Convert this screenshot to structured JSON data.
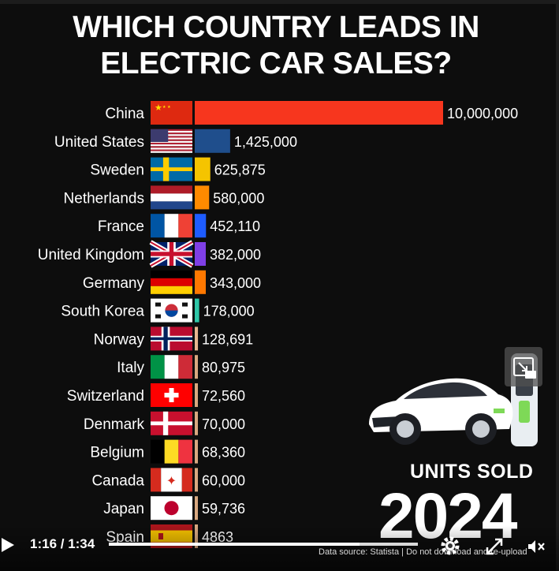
{
  "title_lines": [
    "WHICH COUNTRY LEADS IN",
    "ELECTRIC CAR SALES?"
  ],
  "chart_data": {
    "type": "bar",
    "orientation": "horizontal",
    "title": "WHICH COUNTRY LEADS IN ELECTRIC CAR SALES?",
    "categories": [
      "China",
      "United States",
      "Sweden",
      "Netherlands",
      "France",
      "United Kingdom",
      "Germany",
      "South Korea",
      "Norway",
      "Italy",
      "Switzerland",
      "Denmark",
      "Belgium",
      "Canada",
      "Japan",
      "Spain"
    ],
    "values": [
      10000000,
      1425000,
      625875,
      580000,
      452110,
      382000,
      343000,
      178000,
      128691,
      80975,
      72560,
      70000,
      68360,
      60000,
      59736,
      4863
    ],
    "value_labels": [
      "10,000,000",
      "1,425,000",
      "625,875",
      "580,000",
      "452,110",
      "382,000",
      "343,000",
      "178,000",
      "128,691",
      "80,975",
      "72,560",
      "70,000",
      "68,360",
      "60,000",
      "59,736",
      "4863"
    ],
    "bar_colors": [
      "#f7361e",
      "#1f4e8c",
      "#f5c400",
      "#ff8a00",
      "#1e5cff",
      "#7f3fe6",
      "#ff7800",
      "#2fc7a8",
      "#e8b890",
      "#d8a880",
      "#d8a880",
      "#d8a880",
      "#d8a880",
      "#d8a880",
      "#d8a880",
      "#d8a880"
    ],
    "flags": [
      "china",
      "usa",
      "sweden",
      "netherlands",
      "france",
      "uk",
      "germany",
      "south-korea",
      "norway",
      "italy",
      "switzerland",
      "denmark",
      "belgium",
      "canada",
      "japan",
      "spain"
    ],
    "xlim": [
      0,
      10000000
    ],
    "units_label": "UNITS SOLD",
    "year": "2024"
  },
  "player": {
    "time": "1:16 / 1:34",
    "progress": 0.81,
    "source": "Data source: Statista  |  Do not download and re-upload"
  },
  "icons": [
    "play-icon",
    "gear-icon",
    "fullscreen-icon",
    "volume-icon",
    "popout-icon",
    "car-icon",
    "charger-icon"
  ]
}
